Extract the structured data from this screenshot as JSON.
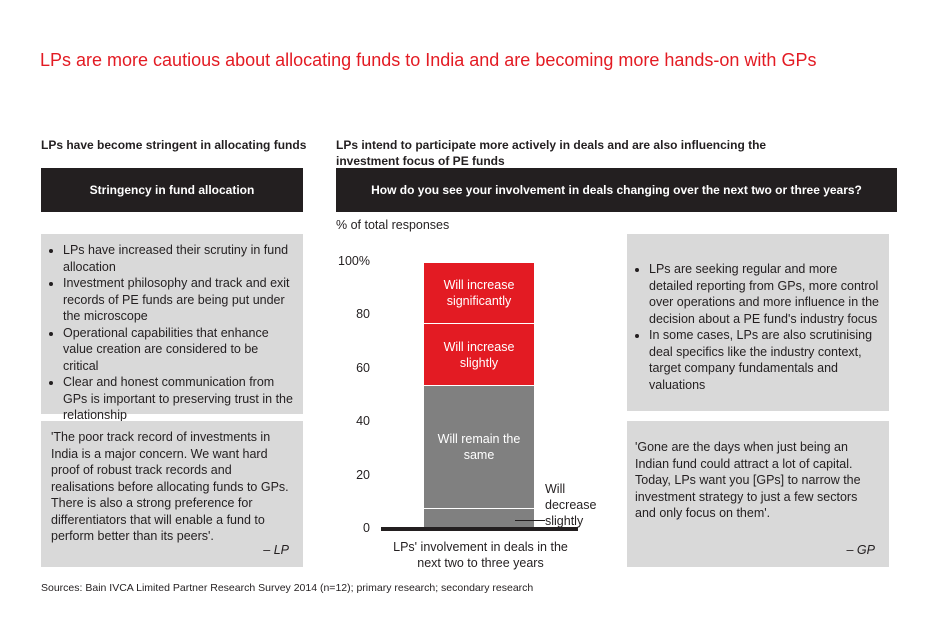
{
  "title": "LPs are more cautious about allocating funds to India and are becoming more hands-on with GPs",
  "left": {
    "subhead": "LPs have become stringent in allocating funds",
    "header": "Stringency in fund allocation",
    "bullets": [
      "LPs have increased their scrutiny in fund allocation",
      "Investment philosophy and track and exit records of PE funds are being put under the microscope",
      "Operational capabilities that enhance value creation are considered to be critical",
      "Clear and honest communication from GPs is important to preserving trust in the relationship"
    ],
    "quote": "'The poor track record of investments in India is a major concern. We want hard proof of robust track records and realisations before allocating funds to GPs. There is also a strong preference for differentiators that will enable a fund to perform better than its peers'.",
    "quote_attr": "– LP"
  },
  "right": {
    "subhead": "LPs intend to participate more actively in deals and are also influencing the investment focus of PE funds",
    "header": "How do you see your involvement in deals changing over the next two or three years?",
    "bullets": [
      "LPs are seeking regular and more detailed reporting from GPs, more control over operations and more influence in the decision about a PE fund's industry focus",
      "In some cases, LPs are also scrutinising deal specifics like the industry context, target company fundamentals and valuations"
    ],
    "quote": "'Gone are the days when just being an Indian fund could attract a lot of capital. Today, LPs want you [GPs] to narrow the investment strategy to just a few sectors and only focus on them'.",
    "quote_attr": "– GP"
  },
  "chart_data": {
    "type": "bar",
    "stacked": true,
    "ylabel": "% of total responses",
    "xlabel": "LPs' involvement in deals in the next two to three years",
    "ylim": [
      0,
      100
    ],
    "yticks": [
      "0",
      "20",
      "40",
      "60",
      "80",
      "100%"
    ],
    "series": [
      {
        "name": "Will decrease slightly",
        "value": 8,
        "color": "#808080"
      },
      {
        "name": "Will remain the same",
        "value": 46,
        "color": "#808080"
      },
      {
        "name": "Will increase slightly",
        "value": 23,
        "color": "#e31b23"
      },
      {
        "name": "Will increase significantly",
        "value": 23,
        "color": "#e31b23"
      }
    ],
    "annotation": "Will decrease slightly"
  },
  "source": "Sources: Bain IVCA Limited Partner Research Survey 2014 (n=12); primary research; secondary research",
  "colors": {
    "accent": "#e31b23",
    "dark": "#231f20",
    "panel": "#d9d9d9",
    "bar_gray": "#808080"
  }
}
